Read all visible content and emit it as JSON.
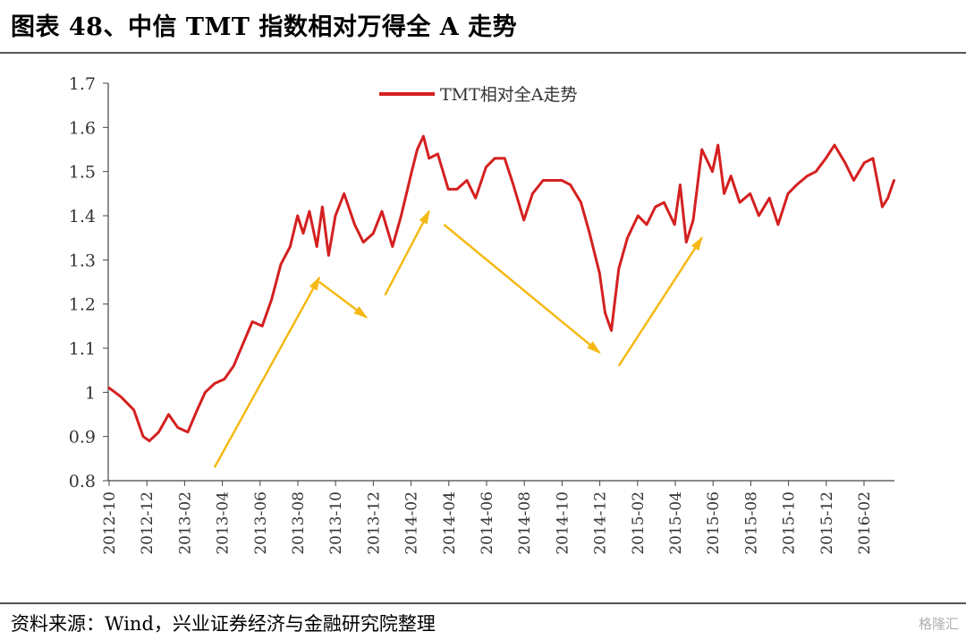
{
  "header": {
    "title": "图表 48、中信 TMT 指数相对万得全 A 走势"
  },
  "footer": {
    "source": "资料来源：Wind，兴业证券经济与金融研究院整理",
    "watermark": "格隆汇"
  },
  "chart_data": {
    "type": "line",
    "title": "",
    "xlabel": "",
    "ylabel": "",
    "ylim": [
      0.8,
      1.7
    ],
    "yticks": [
      "0.8",
      "0.9",
      "1",
      "1.1",
      "1.2",
      "1.3",
      "1.4",
      "1.5",
      "1.6",
      "1.7"
    ],
    "xticks": [
      "2012-10",
      "2012-12",
      "2013-02",
      "2013-04",
      "2013-06",
      "2013-08",
      "2013-10",
      "2013-12",
      "2014-02",
      "2014-04",
      "2014-06",
      "2014-08",
      "2014-10",
      "2014-12",
      "2015-02",
      "2015-04",
      "2015-06",
      "2015-08",
      "2015-10",
      "2015-12",
      "2016-02"
    ],
    "legend": {
      "position": "top-center",
      "entries": [
        "TMT相对全A走势"
      ]
    },
    "grid": false,
    "colors": {
      "line": "#d42020",
      "arrows": "#f5b915",
      "axis": "#444444"
    },
    "series": [
      {
        "name": "TMT相对全A走势",
        "x": [
          "2012-10-01",
          "2012-10-20",
          "2012-11-10",
          "2012-11-25",
          "2012-12-05",
          "2012-12-20",
          "2013-01-05",
          "2013-01-20",
          "2013-02-05",
          "2013-02-20",
          "2013-03-05",
          "2013-03-20",
          "2013-04-05",
          "2013-04-20",
          "2013-05-05",
          "2013-05-20",
          "2013-06-05",
          "2013-06-20",
          "2013-07-05",
          "2013-07-20",
          "2013-08-01",
          "2013-08-10",
          "2013-08-20",
          "2013-09-01",
          "2013-09-10",
          "2013-09-20",
          "2013-10-01",
          "2013-10-15",
          "2013-11-01",
          "2013-11-15",
          "2013-12-01",
          "2013-12-15",
          "2014-01-01",
          "2014-01-15",
          "2014-02-01",
          "2014-02-10",
          "2014-02-20",
          "2014-03-01",
          "2014-03-15",
          "2014-04-01",
          "2014-04-15",
          "2014-05-01",
          "2014-05-15",
          "2014-06-01",
          "2014-06-15",
          "2014-07-01",
          "2014-07-15",
          "2014-08-01",
          "2014-08-15",
          "2014-09-01",
          "2014-09-15",
          "2014-10-01",
          "2014-10-15",
          "2014-11-01",
          "2014-11-15",
          "2014-12-01",
          "2014-12-10",
          "2014-12-20",
          "2015-01-01",
          "2015-01-15",
          "2015-02-01",
          "2015-02-15",
          "2015-03-01",
          "2015-03-15",
          "2015-04-01",
          "2015-04-10",
          "2015-04-20",
          "2015-05-01",
          "2015-05-15",
          "2015-06-01",
          "2015-06-10",
          "2015-06-20",
          "2015-07-01",
          "2015-07-15",
          "2015-08-01",
          "2015-08-15",
          "2015-09-01",
          "2015-09-15",
          "2015-10-01",
          "2015-10-15",
          "2015-11-01",
          "2015-11-15",
          "2015-12-01",
          "2015-12-15",
          "2016-01-01",
          "2016-01-15",
          "2016-02-01",
          "2016-02-15",
          "2016-03-01",
          "2016-03-10",
          "2016-03-20"
        ],
        "values": [
          1.01,
          0.99,
          0.96,
          0.9,
          0.89,
          0.91,
          0.95,
          0.92,
          0.91,
          0.96,
          1.0,
          1.02,
          1.03,
          1.06,
          1.11,
          1.16,
          1.15,
          1.21,
          1.29,
          1.33,
          1.4,
          1.36,
          1.41,
          1.33,
          1.42,
          1.31,
          1.4,
          1.45,
          1.38,
          1.34,
          1.36,
          1.41,
          1.33,
          1.4,
          1.5,
          1.55,
          1.58,
          1.53,
          1.54,
          1.46,
          1.46,
          1.48,
          1.44,
          1.51,
          1.53,
          1.53,
          1.47,
          1.39,
          1.45,
          1.48,
          1.48,
          1.48,
          1.47,
          1.43,
          1.36,
          1.27,
          1.18,
          1.14,
          1.28,
          1.35,
          1.4,
          1.38,
          1.42,
          1.43,
          1.38,
          1.47,
          1.34,
          1.39,
          1.55,
          1.5,
          1.56,
          1.45,
          1.49,
          1.43,
          1.45,
          1.4,
          1.44,
          1.38,
          1.45,
          1.47,
          1.49,
          1.5,
          1.53,
          1.56,
          1.52,
          1.48,
          1.52,
          1.53,
          1.42,
          1.44,
          1.48
        ]
      }
    ],
    "annotations": {
      "arrows": [
        {
          "from": [
            "2013-03-20",
            0.83
          ],
          "to": [
            "2013-09-05",
            1.26
          ]
        },
        {
          "from": [
            "2013-09-05",
            1.25
          ],
          "to": [
            "2013-11-20",
            1.17
          ]
        },
        {
          "from": [
            "2013-12-20",
            1.22
          ],
          "to": [
            "2014-03-01",
            1.41
          ]
        },
        {
          "from": [
            "2014-03-25",
            1.38
          ],
          "to": [
            "2014-12-01",
            1.09
          ]
        },
        {
          "from": [
            "2015-01-01",
            1.06
          ],
          "to": [
            "2015-05-15",
            1.35
          ]
        }
      ]
    }
  }
}
